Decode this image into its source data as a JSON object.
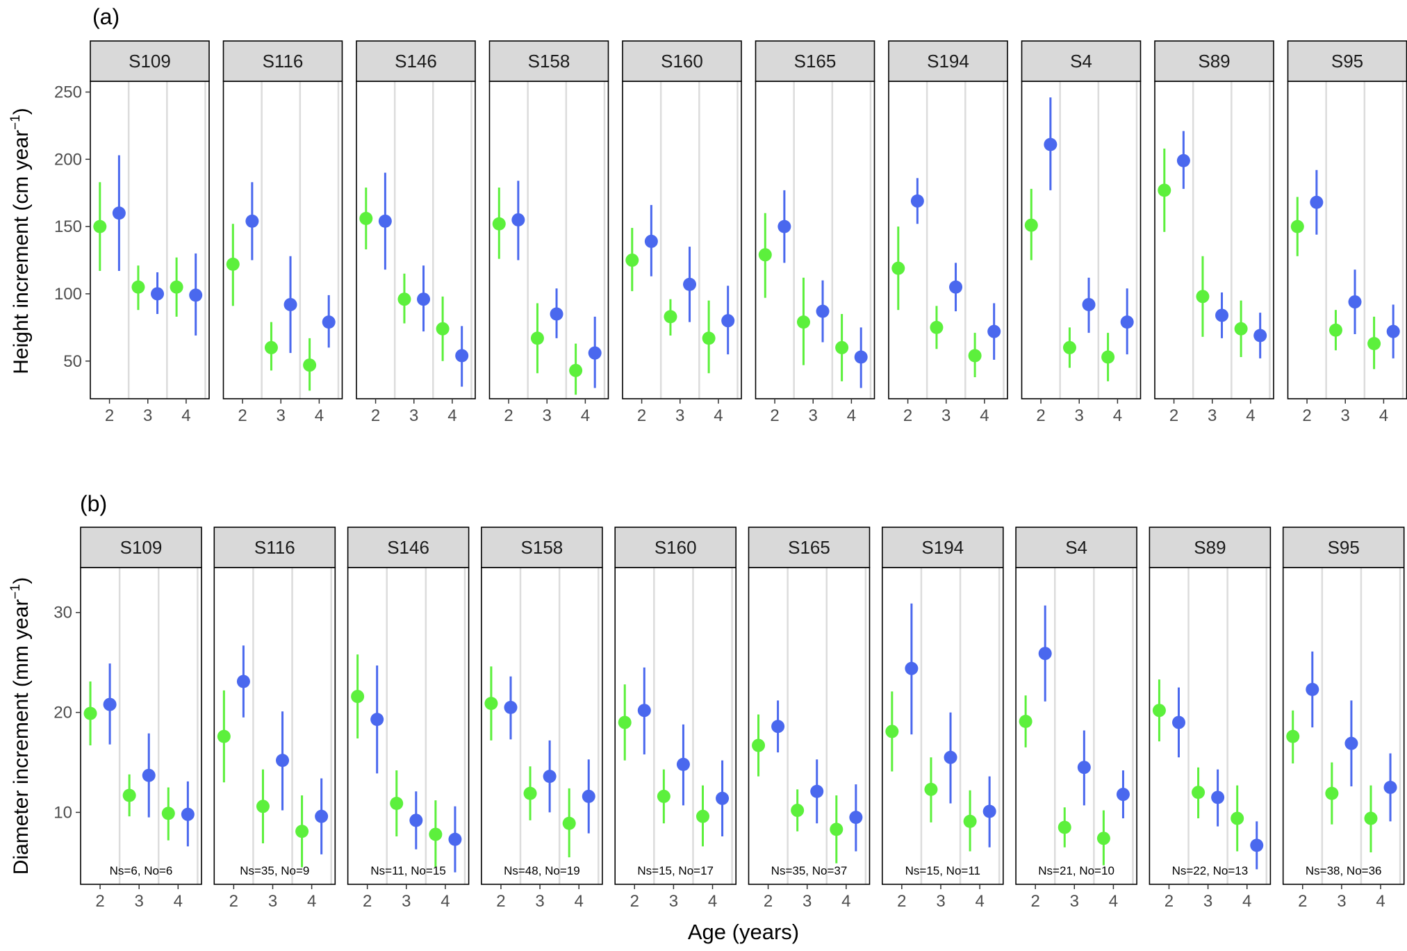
{
  "colors": {
    "green": "#5cf03c",
    "blue": "#4a68ee",
    "strip": "#d9d9d9",
    "grid": "#dcdcdc",
    "text": "#4d4d4d"
  },
  "xlabel": "Age (years)",
  "chart_data": [
    {
      "type": "pointrange",
      "panel_label": "(a)",
      "ylabel_main": "Height increment  (cm year",
      "ylabel_exp": "−1",
      "ylabel_close": ")",
      "ylim": [
        22,
        258
      ],
      "yticks": [
        50,
        100,
        150,
        200,
        250
      ],
      "ages": [
        "2",
        "3",
        "4"
      ],
      "series_names": [
        "green",
        "blue"
      ],
      "facets": [
        {
          "site": "S109",
          "green": [
            [
              150,
              117,
              183
            ],
            [
              105,
              88,
              121
            ],
            [
              105,
              83,
              127
            ]
          ],
          "blue": [
            [
              160,
              117,
              203
            ],
            [
              100,
              85,
              116
            ],
            [
              99,
              69,
              130
            ]
          ]
        },
        {
          "site": "S116",
          "green": [
            [
              122,
              91,
              152
            ],
            [
              60,
              43,
              79
            ],
            [
              47,
              28,
              67
            ]
          ],
          "blue": [
            [
              154,
              125,
              183
            ],
            [
              92,
              56,
              128
            ],
            [
              79,
              60,
              99
            ]
          ]
        },
        {
          "site": "S146",
          "green": [
            [
              156,
              133,
              179
            ],
            [
              96,
              78,
              115
            ],
            [
              74,
              50,
              98
            ]
          ],
          "blue": [
            [
              154,
              118,
              190
            ],
            [
              96,
              72,
              121
            ],
            [
              54,
              31,
              76
            ]
          ]
        },
        {
          "site": "S158",
          "green": [
            [
              152,
              126,
              179
            ],
            [
              67,
              41,
              93
            ],
            [
              43,
              25,
              63
            ]
          ],
          "blue": [
            [
              155,
              125,
              184
            ],
            [
              85,
              67,
              104
            ],
            [
              56,
              30,
              83
            ]
          ]
        },
        {
          "site": "S160",
          "green": [
            [
              125,
              102,
              149
            ],
            [
              83,
              69,
              96
            ],
            [
              67,
              41,
              95
            ]
          ],
          "blue": [
            [
              139,
              113,
              166
            ],
            [
              107,
              79,
              135
            ],
            [
              80,
              55,
              106
            ]
          ]
        },
        {
          "site": "S165",
          "green": [
            [
              129,
              97,
              160
            ],
            [
              79,
              47,
              112
            ],
            [
              60,
              35,
              85
            ]
          ],
          "blue": [
            [
              150,
              123,
              177
            ],
            [
              87,
              64,
              110
            ],
            [
              53,
              30,
              75
            ]
          ]
        },
        {
          "site": "S194",
          "green": [
            [
              119,
              88,
              150
            ],
            [
              75,
              59,
              91
            ],
            [
              54,
              38,
              71
            ]
          ],
          "blue": [
            [
              169,
              152,
              186
            ],
            [
              105,
              87,
              123
            ],
            [
              72,
              51,
              93
            ]
          ]
        },
        {
          "site": "S4",
          "green": [
            [
              151,
              125,
              178
            ],
            [
              60,
              45,
              75
            ],
            [
              53,
              35,
              71
            ]
          ],
          "blue": [
            [
              211,
              177,
              246
            ],
            [
              92,
              71,
              112
            ],
            [
              79,
              55,
              104
            ]
          ]
        },
        {
          "site": "S89",
          "green": [
            [
              177,
              146,
              208
            ],
            [
              98,
              68,
              128
            ],
            [
              74,
              53,
              95
            ]
          ],
          "blue": [
            [
              199,
              178,
              221
            ],
            [
              84,
              67,
              101
            ],
            [
              69,
              52,
              86
            ]
          ]
        },
        {
          "site": "S95",
          "green": [
            [
              150,
              128,
              172
            ],
            [
              73,
              58,
              88
            ],
            [
              63,
              44,
              83
            ]
          ],
          "blue": [
            [
              168,
              144,
              192
            ],
            [
              94,
              70,
              118
            ],
            [
              72,
              52,
              92
            ]
          ]
        }
      ]
    },
    {
      "type": "pointrange",
      "panel_label": "(b)",
      "ylabel_main": "Diameter increment  (mm year",
      "ylabel_exp": "−1",
      "ylabel_close": ")",
      "ylim": [
        2.8,
        34.5
      ],
      "yticks": [
        10,
        20,
        30
      ],
      "ages": [
        "2",
        "3",
        "4"
      ],
      "series_names": [
        "green",
        "blue"
      ],
      "facets": [
        {
          "site": "S109",
          "annotation": "Ns=6, No=6",
          "green": [
            [
              19.9,
              16.7,
              23.1
            ],
            [
              11.7,
              9.6,
              13.8
            ],
            [
              9.9,
              7.2,
              12.5
            ]
          ],
          "blue": [
            [
              20.8,
              16.8,
              24.9
            ],
            [
              13.7,
              9.5,
              17.9
            ],
            [
              9.8,
              6.6,
              13.1
            ]
          ]
        },
        {
          "site": "S116",
          "annotation": "Ns=35, No=9",
          "green": [
            [
              17.6,
              13.0,
              22.2
            ],
            [
              10.6,
              6.9,
              14.3
            ],
            [
              8.1,
              4.5,
              11.7
            ]
          ],
          "blue": [
            [
              23.1,
              19.5,
              26.7
            ],
            [
              15.2,
              10.2,
              20.1
            ],
            [
              9.6,
              5.8,
              13.4
            ]
          ]
        },
        {
          "site": "S146",
          "annotation": "Ns=11, No=15",
          "green": [
            [
              21.6,
              17.4,
              25.8
            ],
            [
              10.9,
              7.6,
              14.2
            ],
            [
              7.8,
              4.5,
              11.2
            ]
          ],
          "blue": [
            [
              19.3,
              13.9,
              24.7
            ],
            [
              9.2,
              6.3,
              12.1
            ],
            [
              7.3,
              4.0,
              10.6
            ]
          ]
        },
        {
          "site": "S158",
          "annotation": "Ns=48, No=19",
          "green": [
            [
              20.9,
              17.2,
              24.6
            ],
            [
              11.9,
              9.2,
              14.6
            ],
            [
              8.9,
              5.5,
              12.4
            ]
          ],
          "blue": [
            [
              20.5,
              17.3,
              23.6
            ],
            [
              13.6,
              10.0,
              17.2
            ],
            [
              11.6,
              7.9,
              15.3
            ]
          ]
        },
        {
          "site": "S160",
          "annotation": "Ns=15, No=17",
          "green": [
            [
              19.0,
              15.2,
              22.8
            ],
            [
              11.6,
              8.9,
              14.3
            ],
            [
              9.6,
              6.6,
              12.7
            ]
          ],
          "blue": [
            [
              20.2,
              15.8,
              24.5
            ],
            [
              14.8,
              10.7,
              18.8
            ],
            [
              11.4,
              7.6,
              15.2
            ]
          ]
        },
        {
          "site": "S165",
          "annotation": "Ns=35, No=37",
          "green": [
            [
              16.7,
              13.6,
              19.8
            ],
            [
              10.2,
              8.1,
              12.3
            ],
            [
              8.3,
              4.9,
              11.7
            ]
          ],
          "blue": [
            [
              18.6,
              16.0,
              21.2
            ],
            [
              12.1,
              8.9,
              15.3
            ],
            [
              9.5,
              6.1,
              12.8
            ]
          ]
        },
        {
          "site": "S194",
          "annotation": "Ns=15, No=11",
          "green": [
            [
              18.1,
              14.1,
              22.1
            ],
            [
              12.3,
              9.0,
              15.5
            ],
            [
              9.1,
              6.1,
              12.2
            ]
          ],
          "blue": [
            [
              24.4,
              17.8,
              30.9
            ],
            [
              15.5,
              10.9,
              20.0
            ],
            [
              10.1,
              6.5,
              13.6
            ]
          ]
        },
        {
          "site": "S4",
          "annotation": "Ns=21, No=10",
          "green": [
            [
              19.1,
              16.5,
              21.7
            ],
            [
              8.5,
              6.5,
              10.5
            ],
            [
              7.4,
              4.7,
              10.2
            ]
          ],
          "blue": [
            [
              25.9,
              21.1,
              30.7
            ],
            [
              14.5,
              10.7,
              18.2
            ],
            [
              11.8,
              9.4,
              14.2
            ]
          ]
        },
        {
          "site": "S89",
          "annotation": "Ns=22, No=13",
          "green": [
            [
              20.2,
              17.1,
              23.3
            ],
            [
              12.0,
              9.4,
              14.5
            ],
            [
              9.4,
              6.1,
              12.7
            ]
          ],
          "blue": [
            [
              19.0,
              15.5,
              22.5
            ],
            [
              11.5,
              8.6,
              14.3
            ],
            [
              6.7,
              4.3,
              9.1
            ]
          ]
        },
        {
          "site": "S95",
          "annotation": "Ns=38, No=36",
          "green": [
            [
              17.6,
              14.9,
              20.2
            ],
            [
              11.9,
              8.8,
              15.0
            ],
            [
              9.4,
              6.0,
              12.7
            ]
          ],
          "blue": [
            [
              22.3,
              18.5,
              26.1
            ],
            [
              16.9,
              12.6,
              21.2
            ],
            [
              12.5,
              9.1,
              15.9
            ]
          ]
        }
      ]
    }
  ]
}
